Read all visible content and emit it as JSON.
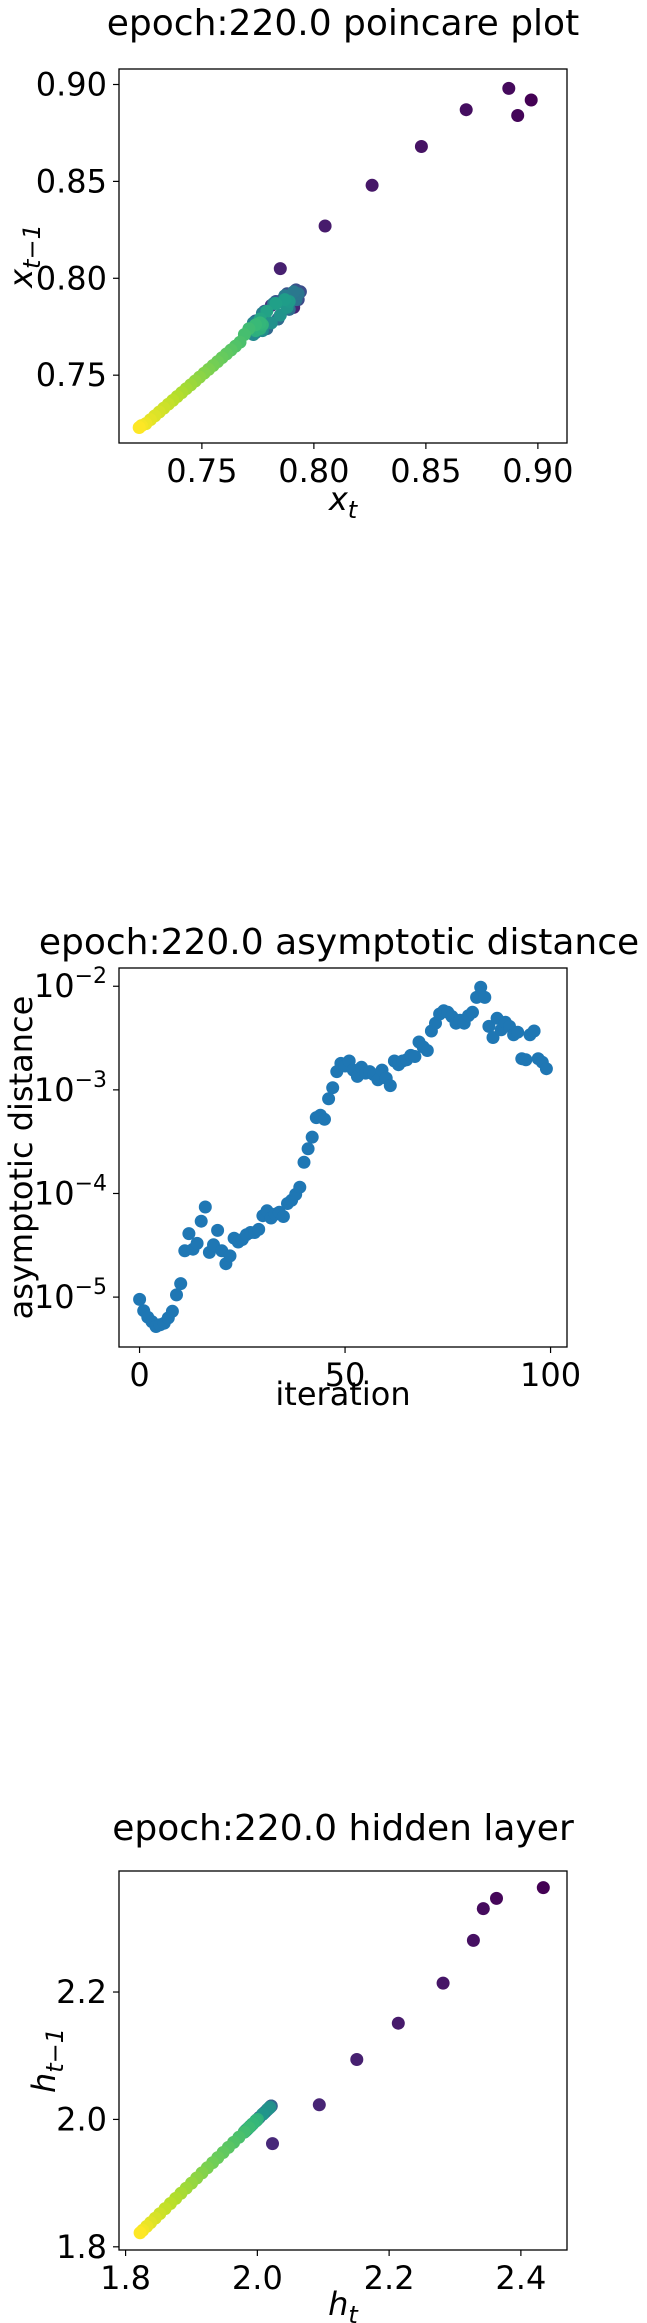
{
  "chart_data": [
    {
      "type": "scatter",
      "title": "epoch:220.0 poincare plot",
      "xlabel": "x_t",
      "ylabel": "x_{t-1}",
      "xlim": [
        0.713,
        0.913
      ],
      "ylim": [
        0.715,
        0.908
      ],
      "xticks": [
        0.75,
        0.8,
        0.85,
        0.9
      ],
      "xtick_labels": [
        "0.75",
        "0.80",
        "0.85",
        "0.90"
      ],
      "yticks": [
        0.75,
        0.8,
        0.85,
        0.9
      ],
      "ytick_labels": [
        "0.75",
        "0.80",
        "0.85",
        "0.90"
      ],
      "colormap": "viridis",
      "color_encoding": "iteration index (first = dark purple, last = yellow)",
      "grid": false,
      "x": [
        0.897,
        0.891,
        0.887,
        0.868,
        0.848,
        0.826,
        0.805,
        0.785,
        0.791,
        0.789,
        0.786,
        0.781,
        0.777,
        0.774,
        0.775,
        0.779,
        0.784,
        0.789,
        0.793,
        0.794,
        0.792,
        0.788,
        0.783,
        0.778,
        0.774,
        0.772,
        0.774,
        0.779,
        0.784,
        0.789,
        0.792,
        0.793,
        0.791,
        0.787,
        0.782,
        0.777,
        0.773,
        0.771,
        0.773,
        0.777,
        0.781,
        0.785,
        0.788,
        0.789,
        0.787,
        0.783,
        0.779,
        0.776,
        0.774,
        0.773,
        0.774,
        0.776,
        0.777,
        0.776,
        0.774,
        0.771,
        0.769,
        0.767,
        0.765,
        0.763,
        0.761,
        0.759,
        0.757,
        0.755,
        0.753,
        0.751,
        0.749,
        0.747,
        0.745,
        0.743,
        0.741,
        0.739,
        0.737,
        0.735,
        0.733,
        0.731,
        0.729,
        0.727,
        0.725,
        0.723,
        0.722
      ],
      "y": [
        0.892,
        0.884,
        0.898,
        0.887,
        0.868,
        0.848,
        0.827,
        0.805,
        0.785,
        0.791,
        0.789,
        0.786,
        0.781,
        0.777,
        0.774,
        0.775,
        0.779,
        0.784,
        0.789,
        0.793,
        0.794,
        0.792,
        0.788,
        0.783,
        0.778,
        0.774,
        0.772,
        0.774,
        0.779,
        0.784,
        0.789,
        0.792,
        0.793,
        0.791,
        0.787,
        0.782,
        0.777,
        0.773,
        0.771,
        0.773,
        0.777,
        0.781,
        0.785,
        0.788,
        0.789,
        0.787,
        0.783,
        0.779,
        0.776,
        0.774,
        0.773,
        0.774,
        0.776,
        0.777,
        0.776,
        0.774,
        0.771,
        0.767,
        0.765,
        0.763,
        0.761,
        0.759,
        0.757,
        0.755,
        0.753,
        0.751,
        0.749,
        0.747,
        0.745,
        0.743,
        0.741,
        0.739,
        0.737,
        0.735,
        0.733,
        0.731,
        0.729,
        0.727,
        0.725,
        0.724,
        0.723
      ]
    },
    {
      "type": "scatter",
      "title": "epoch:220.0 asymptotic distance",
      "xlabel": "iteration",
      "ylabel": "asymptotic distance",
      "yscale": "log",
      "xlim": [
        -5,
        104
      ],
      "ylim": [
        3.3e-06,
        0.015
      ],
      "xticks": [
        0,
        50,
        100
      ],
      "xtick_labels": [
        "0",
        "50",
        "100"
      ],
      "yticks": [
        1e-05,
        0.0001,
        0.001,
        0.01
      ],
      "ytick_bases": [
        "10",
        "10",
        "10",
        "10"
      ],
      "ytick_exponents": [
        "−5",
        "−4",
        "−3",
        "−2"
      ],
      "color": "#1f77b4",
      "grid": false,
      "x": [
        0,
        1,
        2,
        3,
        4,
        5,
        6,
        7,
        8,
        9,
        10,
        11,
        12,
        13,
        14,
        15,
        16,
        17,
        18,
        19,
        20,
        21,
        22,
        23,
        24,
        25,
        26,
        27,
        28,
        29,
        30,
        31,
        32,
        33,
        34,
        35,
        36,
        37,
        38,
        39,
        40,
        41,
        42,
        43,
        44,
        45,
        46,
        47,
        48,
        49,
        50,
        51,
        52,
        53,
        54,
        55,
        56,
        57,
        58,
        59,
        60,
        61,
        62,
        63,
        64,
        65,
        66,
        67,
        68,
        69,
        70,
        71,
        72,
        73,
        74,
        75,
        76,
        77,
        78,
        79,
        80,
        81,
        82,
        83,
        84,
        85,
        86,
        87,
        88,
        89,
        90,
        91,
        92,
        93,
        94,
        95,
        96,
        97,
        98,
        99
      ],
      "y": [
        9.5e-06,
        7.4e-06,
        6.4e-06,
        5.8e-06,
        5.2e-06,
        5.4e-06,
        5.6e-06,
        6.3e-06,
        7.3e-06,
        1.05e-05,
        1.35e-05,
        2.8e-05,
        4.1e-05,
        2.9e-05,
        3.3e-05,
        5.4e-05,
        7.4e-05,
        2.7e-05,
        3.2e-05,
        4.4e-05,
        2.8e-05,
        2.1e-05,
        2.5e-05,
        3.7e-05,
        3.4e-05,
        3.6e-05,
        4e-05,
        4.2e-05,
        4.2e-05,
        4.5e-05,
        6.1e-05,
        6.8e-05,
        5.8e-05,
        6.3e-05,
        6.6e-05,
        6e-05,
        8e-05,
        8.6e-05,
        9.8e-05,
        0.000115,
        0.0002,
        0.00027,
        0.00035,
        0.00054,
        0.00057,
        0.00052,
        0.00082,
        0.00105,
        0.0015,
        0.0018,
        0.0017,
        0.0019,
        0.00155,
        0.00135,
        0.00165,
        0.00145,
        0.0015,
        0.0014,
        0.00125,
        0.00155,
        0.0013,
        0.0011,
        0.0019,
        0.00175,
        0.0019,
        0.00195,
        0.00215,
        0.0021,
        0.0029,
        0.0026,
        0.0024,
        0.0037,
        0.0044,
        0.0054,
        0.0058,
        0.0056,
        0.0051,
        0.0044,
        0.0047,
        0.0044,
        0.0052,
        0.0056,
        0.0078,
        0.0098,
        0.0078,
        0.0041,
        0.0032,
        0.0049,
        0.0038,
        0.0045,
        0.0041,
        0.0034,
        0.0036,
        0.002,
        0.00195,
        0.0034,
        0.0037,
        0.002,
        0.00185,
        0.0016
      ]
    },
    {
      "type": "scatter",
      "title": "epoch:220.0 hidden layer",
      "xlabel": "h_t",
      "ylabel": "h_{t-1}",
      "xlim": [
        1.79,
        2.47
      ],
      "ylim": [
        1.795,
        2.39
      ],
      "xticks": [
        1.8,
        2.0,
        2.2,
        2.4
      ],
      "xtick_labels": [
        "1.8",
        "2.0",
        "2.2",
        "2.4"
      ],
      "yticks": [
        1.8,
        2.0,
        2.2
      ],
      "ytick_labels": [
        "1.8",
        "2.0",
        "2.2"
      ],
      "colormap": "viridis",
      "color_encoding": "iteration index (first = dark purple, last = yellow)",
      "grid": false,
      "x": [
        2.434,
        2.363,
        2.343,
        2.328,
        2.282,
        2.214,
        2.151,
        2.094,
        2.023,
        2.021,
        2.019,
        2.015,
        2.008,
        1.998,
        1.989,
        1.983,
        1.982,
        1.985,
        1.993,
        2.003,
        2.012,
        2.019,
        2.021,
        2.018,
        2.01,
        2.0,
        1.99,
        1.983,
        1.98,
        1.982,
        1.988,
        1.998,
        2.008,
        2.016,
        2.019,
        2.016,
        2.008,
        1.998,
        1.99,
        1.985,
        1.984,
        1.987,
        1.992,
        1.997,
        2.0,
        1.998,
        1.993,
        1.987,
        1.98,
        1.972,
        1.964,
        1.956,
        1.948,
        1.94,
        1.932,
        1.924,
        1.916,
        1.908,
        1.9,
        1.892,
        1.884,
        1.876,
        1.868,
        1.86,
        1.852,
        1.845,
        1.838,
        1.832,
        1.826,
        1.822
      ],
      "y": [
        2.364,
        2.347,
        2.331,
        2.281,
        2.214,
        2.151,
        2.094,
        2.023,
        1.962,
        2.021,
        2.019,
        2.015,
        2.008,
        1.998,
        1.989,
        1.983,
        1.982,
        1.985,
        1.993,
        2.003,
        2.012,
        2.019,
        2.021,
        2.018,
        2.01,
        2.0,
        1.99,
        1.983,
        1.98,
        1.982,
        1.988,
        1.998,
        2.008,
        2.016,
        2.019,
        2.016,
        2.008,
        1.998,
        1.99,
        1.985,
        1.984,
        1.987,
        1.992,
        1.997,
        2.0,
        1.998,
        1.993,
        1.987,
        1.98,
        1.972,
        1.964,
        1.956,
        1.948,
        1.94,
        1.932,
        1.924,
        1.916,
        1.908,
        1.9,
        1.892,
        1.884,
        1.876,
        1.868,
        1.86,
        1.852,
        1.845,
        1.838,
        1.832,
        1.826,
        1.822
      ]
    }
  ]
}
